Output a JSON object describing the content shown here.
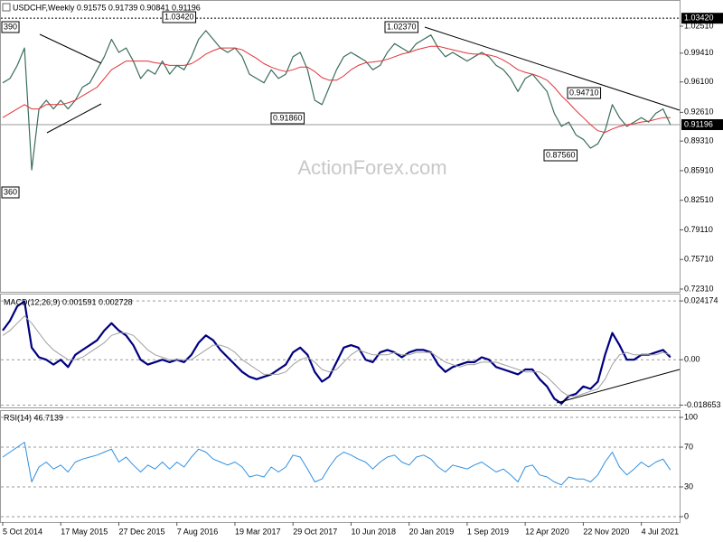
{
  "chart_data": [
    {
      "type": "line",
      "title": "USDCHF,Weekly  0.91575 0.91739 0.90841 0.91196",
      "watermark": "ActionForex.com",
      "ylim": [
        0.72,
        1.0541
      ],
      "yticks": [
        {
          "value": 1.0251,
          "label": "1.02510"
        },
        {
          "value": 0.9941,
          "label": "0.99410"
        },
        {
          "value": 0.961,
          "label": "0.96100"
        },
        {
          "value": 0.9261,
          "label": "0.92610"
        },
        {
          "value": 0.8931,
          "label": "0.89310"
        },
        {
          "value": 0.8591,
          "label": "0.85910"
        },
        {
          "value": 0.8251,
          "label": "0.82510"
        },
        {
          "value": 0.7911,
          "label": "0.79110"
        },
        {
          "value": 0.7571,
          "label": "0.75710"
        },
        {
          "value": 0.7231,
          "label": "0.72310"
        }
      ],
      "reference_lines": [
        {
          "value": 1.0342,
          "label": "1.03420"
        },
        {
          "value": 0.91196,
          "label": "0.91196"
        }
      ],
      "annotations": [
        "1.03420",
        "1.02370",
        "0.91860",
        "0.94710",
        "0.87560",
        "390",
        "360"
      ],
      "grid": false,
      "series": [
        {
          "name": "Close",
          "color": "#3a6e5a",
          "width": 1.2,
          "values": [
            0.96,
            0.965,
            0.98,
            1.0,
            0.86,
            0.93,
            0.94,
            0.93,
            0.94,
            0.93,
            0.94,
            0.955,
            0.96,
            0.975,
            0.99,
            1.01,
            0.995,
            1.0,
            0.985,
            0.965,
            0.975,
            0.97,
            0.985,
            0.97,
            0.98,
            0.975,
            0.99,
            1.01,
            1.02,
            1.01,
            1.0,
            0.995,
            1.0,
            0.99,
            0.97,
            0.965,
            0.96,
            0.975,
            0.965,
            0.97,
            0.99,
            0.995,
            0.975,
            0.94,
            0.935,
            0.955,
            0.975,
            0.99,
            0.995,
            0.99,
            0.985,
            0.975,
            0.98,
            0.995,
            1.005,
            1.0,
            0.995,
            1.005,
            1.01,
            1.015,
            1.0,
            0.99,
            0.995,
            0.99,
            0.985,
            0.99,
            0.995,
            0.99,
            0.98,
            0.975,
            0.965,
            0.95,
            0.965,
            0.97,
            0.96,
            0.95,
            0.925,
            0.91,
            0.915,
            0.9,
            0.895,
            0.885,
            0.89,
            0.905,
            0.935,
            0.92,
            0.91,
            0.915,
            0.92,
            0.915,
            0.925,
            0.93,
            0.912
          ]
        },
        {
          "name": "MA",
          "color": "#e0333a",
          "width": 1,
          "values": [
            0.92,
            0.925,
            0.93,
            0.935,
            0.93,
            0.93,
            0.935,
            0.935,
            0.935,
            0.937,
            0.94,
            0.945,
            0.95,
            0.955,
            0.965,
            0.975,
            0.98,
            0.985,
            0.985,
            0.985,
            0.985,
            0.983,
            0.982,
            0.98,
            0.98,
            0.98,
            0.982,
            0.987,
            0.993,
            0.997,
            1.0,
            1.0,
            1.0,
            0.998,
            0.993,
            0.988,
            0.982,
            0.978,
            0.975,
            0.973,
            0.975,
            0.978,
            0.978,
            0.973,
            0.966,
            0.963,
            0.963,
            0.968,
            0.975,
            0.98,
            0.983,
            0.984,
            0.985,
            0.987,
            0.99,
            0.993,
            0.995,
            0.998,
            1.0,
            1.002,
            1.002,
            1.0,
            0.998,
            0.996,
            0.994,
            0.993,
            0.993,
            0.992,
            0.99,
            0.986,
            0.981,
            0.975,
            0.972,
            0.97,
            0.967,
            0.963,
            0.955,
            0.945,
            0.937,
            0.928,
            0.92,
            0.912,
            0.905,
            0.903,
            0.907,
            0.91,
            0.912,
            0.913,
            0.915,
            0.916,
            0.918,
            0.92,
            0.92
          ]
        }
      ]
    },
    {
      "type": "line",
      "title": "MACD(12,26,9) 0.001591 0.002728",
      "ylim": [
        -0.0196,
        0.02682
      ],
      "yticks": [
        0.024174,
        {
          "value": 0,
          "label": "0.00"
        },
        -0.018653
      ],
      "grid": "dashed",
      "series": [
        {
          "name": "MACD",
          "color": "#000080",
          "width": 2.2,
          "values": [
            0.012,
            0.016,
            0.022,
            0.024,
            0.005,
            0.001,
            0.0,
            -0.002,
            0.0,
            -0.003,
            0.002,
            0.004,
            0.006,
            0.008,
            0.012,
            0.015,
            0.012,
            0.01,
            0.006,
            0.0,
            -0.002,
            -0.001,
            0.0,
            -0.001,
            0.0,
            -0.001,
            0.002,
            0.007,
            0.01,
            0.008,
            0.004,
            0.001,
            -0.002,
            -0.005,
            -0.007,
            -0.008,
            -0.007,
            -0.006,
            -0.004,
            -0.002,
            0.003,
            0.005,
            0.002,
            -0.005,
            -0.009,
            -0.007,
            -0.001,
            0.005,
            0.006,
            0.005,
            0.0,
            -0.001,
            0.003,
            0.004,
            0.003,
            0.001,
            0.003,
            0.004,
            0.004,
            0.003,
            -0.002,
            -0.005,
            -0.003,
            -0.002,
            -0.001,
            -0.001,
            0.001,
            0.0,
            -0.003,
            -0.004,
            -0.005,
            -0.006,
            -0.004,
            -0.004,
            -0.008,
            -0.011,
            -0.016,
            -0.018,
            -0.015,
            -0.014,
            -0.011,
            -0.012,
            -0.009,
            0.002,
            0.011,
            0.006,
            0.0,
            0.0,
            0.002,
            0.002,
            0.003,
            0.004,
            0.001
          ]
        },
        {
          "name": "Signal",
          "color": "#a0a0a0",
          "width": 1,
          "values": [
            0.01,
            0.012,
            0.015,
            0.018,
            0.015,
            0.011,
            0.007,
            0.004,
            0.002,
            0.0,
            0.0,
            0.001,
            0.003,
            0.005,
            0.007,
            0.01,
            0.011,
            0.011,
            0.01,
            0.007,
            0.004,
            0.002,
            0.001,
            0.0,
            0.0,
            0.0,
            0.0,
            0.002,
            0.004,
            0.006,
            0.006,
            0.005,
            0.003,
            0.0,
            -0.002,
            -0.004,
            -0.006,
            -0.006,
            -0.006,
            -0.005,
            -0.002,
            0.0,
            0.001,
            -0.001,
            -0.004,
            -0.005,
            -0.004,
            -0.001,
            0.002,
            0.004,
            0.003,
            0.002,
            0.002,
            0.002,
            0.003,
            0.002,
            0.002,
            0.003,
            0.003,
            0.003,
            0.001,
            -0.001,
            -0.002,
            -0.003,
            -0.002,
            -0.002,
            -0.001,
            -0.001,
            -0.001,
            -0.002,
            -0.003,
            -0.004,
            -0.005,
            -0.005,
            -0.005,
            -0.007,
            -0.01,
            -0.013,
            -0.015,
            -0.015,
            -0.014,
            -0.013,
            -0.012,
            -0.008,
            -0.002,
            0.002,
            0.003,
            0.002,
            0.002,
            0.002,
            0.002,
            0.003,
            0.002
          ]
        }
      ]
    },
    {
      "type": "line",
      "title": "RSI(14) 46.7139",
      "ylim": [
        -5.5,
        106.4
      ],
      "yticks": [
        100,
        70,
        30,
        0
      ],
      "grid": "dashed",
      "categories": [
        "5 Oct 2014",
        null,
        null,
        null,
        null,
        null,
        null,
        null,
        "17 May 2015",
        null,
        null,
        null,
        null,
        null,
        null,
        null,
        "27 Dec 2015",
        null,
        null,
        null,
        null,
        null,
        null,
        null,
        "7 Aug 2016",
        null,
        null,
        null,
        null,
        null,
        null,
        null,
        "19 Mar 2017",
        null,
        null,
        null,
        null,
        null,
        null,
        null,
        "29 Oct 2017",
        null,
        null,
        null,
        null,
        null,
        null,
        null,
        "10 Jun 2018",
        null,
        null,
        null,
        null,
        null,
        null,
        null,
        "20 Jan 2019",
        null,
        null,
        null,
        null,
        null,
        null,
        null,
        "1 Sep 2019",
        null,
        null,
        null,
        null,
        null,
        null,
        null,
        "12 Apr 2020",
        null,
        null,
        null,
        null,
        null,
        null,
        null,
        "22 Nov 2020",
        null,
        null,
        null,
        null,
        null,
        null,
        null,
        "4 Jul 2021",
        null,
        null,
        null,
        null
      ],
      "series": [
        {
          "name": "RSI",
          "color": "#2f8fe0",
          "width": 1,
          "values": [
            60,
            65,
            70,
            75,
            35,
            50,
            55,
            48,
            52,
            45,
            55,
            58,
            60,
            62,
            65,
            68,
            55,
            60,
            52,
            45,
            52,
            48,
            55,
            48,
            55,
            50,
            60,
            68,
            65,
            58,
            55,
            52,
            55,
            50,
            40,
            42,
            40,
            50,
            45,
            50,
            62,
            60,
            48,
            35,
            38,
            50,
            60,
            65,
            62,
            58,
            55,
            48,
            55,
            60,
            62,
            55,
            52,
            60,
            62,
            58,
            50,
            45,
            52,
            50,
            48,
            52,
            55,
            50,
            45,
            48,
            42,
            35,
            50,
            52,
            42,
            40,
            35,
            32,
            40,
            38,
            38,
            35,
            42,
            55,
            65,
            50,
            42,
            48,
            55,
            50,
            55,
            58,
            47
          ]
        }
      ]
    }
  ]
}
